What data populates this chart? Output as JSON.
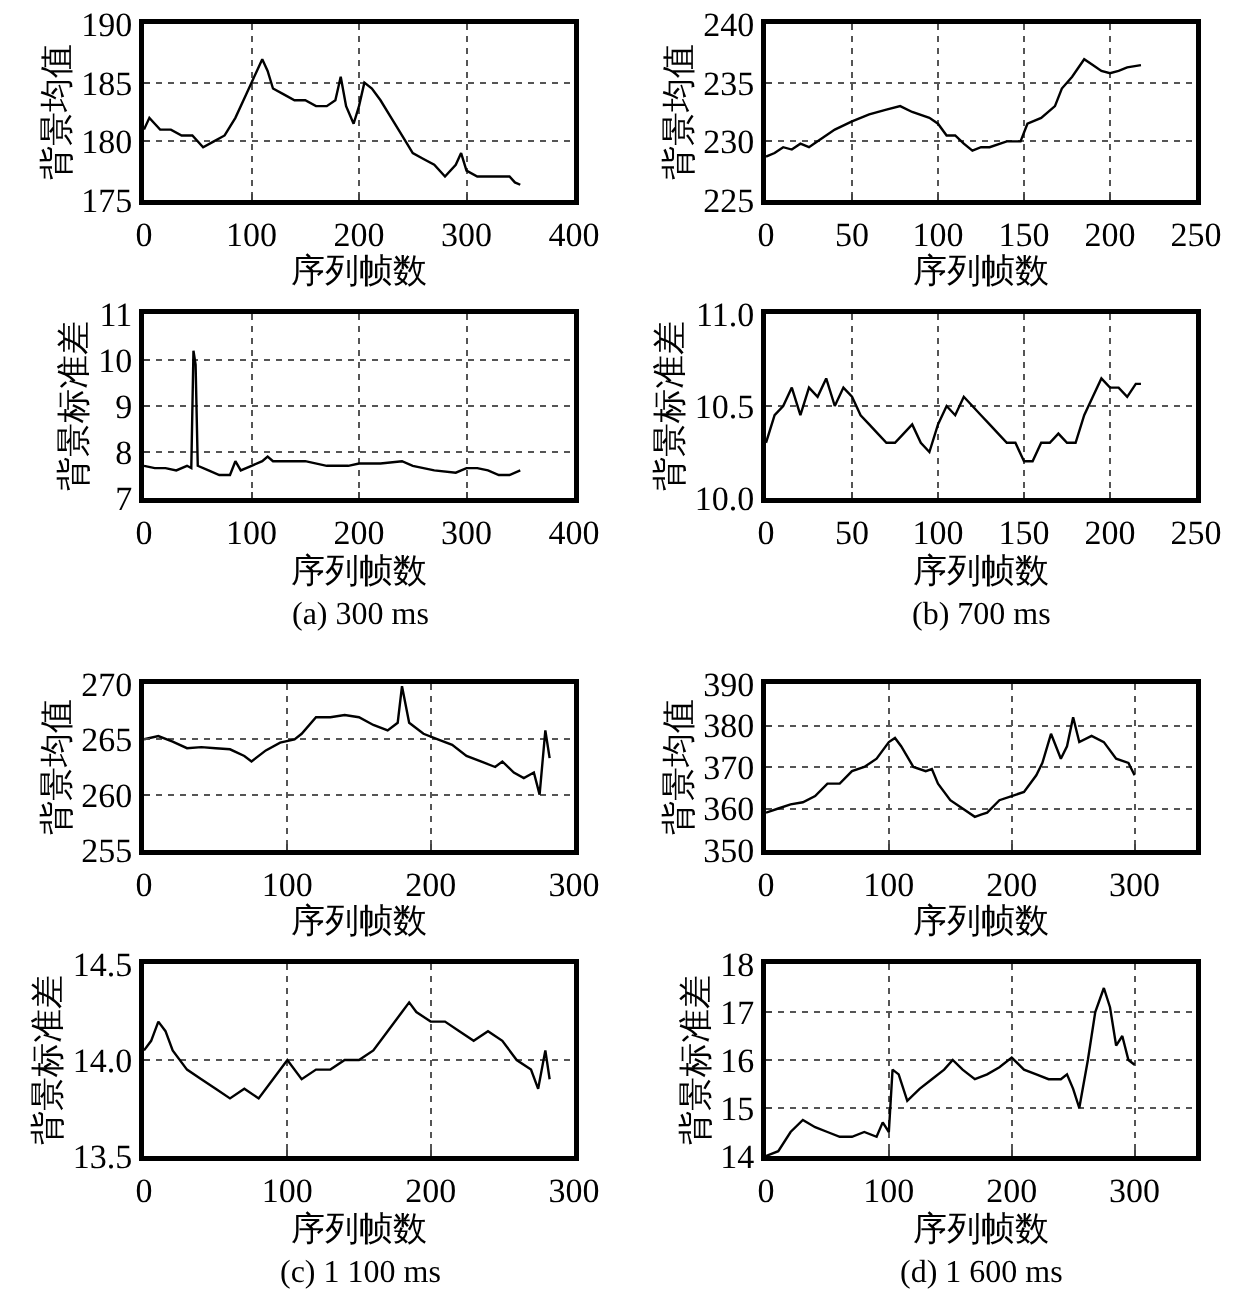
{
  "chart_data": [
    {
      "type": "line",
      "xlabel": "序列帧数",
      "ylabel": "背景均值",
      "xlim": [
        0,
        400
      ],
      "ylim": [
        175,
        190
      ],
      "xticks": [
        0,
        100,
        200,
        300,
        400
      ],
      "yticks": [
        175,
        180,
        185,
        190
      ],
      "grid": true,
      "x": [
        0,
        5,
        10,
        15,
        25,
        35,
        45,
        55,
        65,
        75,
        85,
        95,
        105,
        110,
        115,
        120,
        130,
        140,
        150,
        160,
        170,
        178,
        183,
        188,
        195,
        200,
        205,
        212,
        220,
        230,
        240,
        250,
        260,
        270,
        280,
        290,
        295,
        300,
        310,
        320,
        330,
        340,
        345,
        350
      ],
      "series": [
        {
          "color": "#000000",
          "values": [
            181,
            182,
            181.5,
            181,
            181,
            180.5,
            180.5,
            179.5,
            180,
            180.5,
            182,
            184,
            186,
            187,
            186,
            184.5,
            184,
            183.5,
            183.5,
            183,
            183,
            183.5,
            185.5,
            183,
            181.5,
            183,
            185,
            184.5,
            183.5,
            182,
            180.5,
            179,
            178.5,
            178,
            177,
            178,
            179,
            177.5,
            177,
            177,
            177,
            177,
            176.5,
            176.3
          ]
        }
      ]
    },
    {
      "type": "line",
      "xlabel": "序列帧数",
      "ylabel": "背景均值",
      "xlim": [
        0,
        250
      ],
      "ylim": [
        225,
        240
      ],
      "xticks": [
        0,
        50,
        100,
        150,
        200,
        250
      ],
      "yticks": [
        225,
        230,
        235,
        240
      ],
      "grid": true,
      "x": [
        0,
        5,
        10,
        15,
        20,
        25,
        30,
        40,
        50,
        60,
        70,
        78,
        85,
        95,
        100,
        105,
        110,
        115,
        120,
        125,
        130,
        140,
        148,
        152,
        160,
        168,
        172,
        178,
        185,
        190,
        195,
        200,
        205,
        210,
        218
      ],
      "series": [
        {
          "color": "#000000",
          "values": [
            228.7,
            229,
            229.5,
            229.3,
            229.8,
            229.5,
            230,
            231,
            231.7,
            232.3,
            232.7,
            233,
            232.5,
            232,
            231.5,
            230.5,
            230.5,
            229.8,
            229.2,
            229.5,
            229.5,
            230,
            230,
            231.5,
            232,
            233,
            234.5,
            235.5,
            237,
            236.5,
            236,
            235.8,
            236,
            236.3,
            236.5
          ]
        }
      ]
    },
    {
      "type": "line",
      "xlabel": "序列帧数",
      "ylabel": "背景标准差",
      "xlim": [
        0,
        400
      ],
      "ylim": [
        7,
        11
      ],
      "xticks": [
        0,
        100,
        200,
        300,
        400
      ],
      "yticks": [
        7,
        8,
        9,
        10,
        11
      ],
      "grid": true,
      "annotations": [
        "(a) 300 ms"
      ],
      "x": [
        0,
        10,
        20,
        30,
        40,
        44,
        46,
        48,
        50,
        60,
        70,
        80,
        85,
        90,
        100,
        110,
        115,
        120,
        130,
        150,
        170,
        190,
        200,
        220,
        240,
        250,
        270,
        290,
        300,
        310,
        320,
        330,
        340,
        350
      ],
      "series": [
        {
          "color": "#000000",
          "values": [
            7.7,
            7.65,
            7.65,
            7.6,
            7.7,
            7.65,
            10.2,
            9.9,
            7.7,
            7.6,
            7.5,
            7.5,
            7.8,
            7.6,
            7.7,
            7.8,
            7.9,
            7.8,
            7.8,
            7.8,
            7.7,
            7.7,
            7.75,
            7.75,
            7.8,
            7.7,
            7.6,
            7.55,
            7.65,
            7.65,
            7.6,
            7.5,
            7.5,
            7.6
          ]
        }
      ]
    },
    {
      "type": "line",
      "xlabel": "序列帧数",
      "ylabel": "背景标准差",
      "xlim": [
        0,
        250
      ],
      "ylim": [
        10,
        11
      ],
      "xticks": [
        0,
        50,
        100,
        150,
        200,
        250
      ],
      "yticks": [
        {
          "value": 10,
          "label": "10.0"
        },
        10.5,
        {
          "value": 11,
          "label": "11.0"
        }
      ],
      "grid": true,
      "annotations": [
        "(b) 700 ms"
      ],
      "x": [
        0,
        5,
        10,
        15,
        20,
        25,
        30,
        35,
        40,
        45,
        50,
        55,
        60,
        65,
        70,
        75,
        80,
        85,
        90,
        95,
        100,
        105,
        110,
        115,
        120,
        125,
        130,
        135,
        140,
        145,
        150,
        155,
        160,
        165,
        170,
        175,
        180,
        185,
        190,
        195,
        200,
        205,
        210,
        215,
        218
      ],
      "series": [
        {
          "color": "#000000",
          "values": [
            10.3,
            10.45,
            10.5,
            10.6,
            10.45,
            10.6,
            10.55,
            10.65,
            10.5,
            10.6,
            10.55,
            10.45,
            10.4,
            10.35,
            10.3,
            10.3,
            10.35,
            10.4,
            10.3,
            10.25,
            10.4,
            10.5,
            10.45,
            10.55,
            10.5,
            10.45,
            10.4,
            10.35,
            10.3,
            10.3,
            10.2,
            10.2,
            10.3,
            10.3,
            10.35,
            10.3,
            10.3,
            10.45,
            10.55,
            10.65,
            10.6,
            10.6,
            10.55,
            10.62,
            10.62
          ]
        }
      ]
    },
    {
      "type": "line",
      "xlabel": "序列帧数",
      "ylabel": "背景均值",
      "xlim": [
        0,
        300
      ],
      "ylim": [
        255,
        270
      ],
      "xticks": [
        0,
        100,
        200,
        300
      ],
      "yticks": [
        255,
        260,
        265,
        270
      ],
      "grid": true,
      "x": [
        0,
        10,
        20,
        30,
        40,
        50,
        60,
        70,
        75,
        85,
        95,
        105,
        110,
        120,
        130,
        140,
        150,
        160,
        170,
        177,
        180,
        185,
        195,
        205,
        215,
        225,
        235,
        245,
        250,
        258,
        265,
        272,
        276,
        280,
        283
      ],
      "series": [
        {
          "color": "#000000",
          "values": [
            265,
            265.3,
            264.8,
            264.2,
            264.3,
            264.2,
            264.1,
            263.5,
            263,
            264,
            264.7,
            265,
            265.5,
            267,
            267,
            267.2,
            267,
            266.3,
            265.8,
            266.5,
            269.8,
            266.5,
            265.5,
            265,
            264.5,
            263.5,
            263,
            262.5,
            263,
            262,
            261.5,
            262,
            260,
            265.8,
            263.3
          ]
        }
      ]
    },
    {
      "type": "line",
      "xlabel": "序列帧数",
      "ylabel": "背景均值",
      "xlim": [
        0,
        350
      ],
      "ylim": [
        350,
        390
      ],
      "xticks": [
        0,
        100,
        200,
        300
      ],
      "yticks": [
        350,
        360,
        370,
        380,
        390
      ],
      "grid": true,
      "x": [
        0,
        10,
        20,
        30,
        40,
        50,
        55,
        60,
        70,
        80,
        90,
        100,
        105,
        110,
        120,
        130,
        135,
        140,
        150,
        160,
        170,
        175,
        180,
        190,
        200,
        210,
        220,
        225,
        232,
        240,
        245,
        250,
        255,
        265,
        275,
        285,
        295,
        300
      ],
      "series": [
        {
          "color": "#000000",
          "values": [
            359,
            360,
            361,
            361.5,
            363,
            366,
            366,
            366,
            369,
            370,
            372,
            376,
            377,
            375,
            370,
            369,
            369.5,
            366,
            362,
            360,
            358,
            358.5,
            359,
            362,
            363,
            364,
            368,
            371,
            378,
            372,
            375,
            382,
            376,
            377.5,
            376,
            372,
            371,
            368
          ]
        }
      ]
    },
    {
      "type": "line",
      "xlabel": "序列帧数",
      "ylabel": "背景标准差",
      "xlim": [
        0,
        300
      ],
      "ylim": [
        13.5,
        14.5
      ],
      "xticks": [
        0,
        100,
        200,
        300
      ],
      "yticks": [
        13.5,
        {
          "value": 14,
          "label": "14.0"
        },
        14.5
      ],
      "grid": true,
      "annotations": [
        "(c) 1 100 ms"
      ],
      "x": [
        0,
        5,
        10,
        15,
        20,
        30,
        40,
        50,
        60,
        70,
        80,
        90,
        100,
        110,
        120,
        130,
        140,
        150,
        160,
        170,
        180,
        185,
        190,
        200,
        210,
        220,
        230,
        240,
        250,
        260,
        270,
        275,
        280,
        283
      ],
      "series": [
        {
          "color": "#000000",
          "values": [
            14.05,
            14.1,
            14.2,
            14.15,
            14.05,
            13.95,
            13.9,
            13.85,
            13.8,
            13.85,
            13.8,
            13.9,
            14,
            13.9,
            13.95,
            13.95,
            14,
            14,
            14.05,
            14.15,
            14.25,
            14.3,
            14.25,
            14.2,
            14.2,
            14.15,
            14.1,
            14.15,
            14.1,
            14,
            13.95,
            13.85,
            14.05,
            13.9
          ]
        }
      ]
    },
    {
      "type": "line",
      "xlabel": "序列帧数",
      "ylabel": "背景标准差",
      "xlim": [
        0,
        350
      ],
      "ylim": [
        14,
        18
      ],
      "xticks": [
        0,
        100,
        200,
        300
      ],
      "yticks": [
        14,
        15,
        16,
        17,
        18
      ],
      "grid": true,
      "annotations": [
        "(d) 1 600 ms"
      ],
      "x": [
        0,
        10,
        20,
        30,
        40,
        50,
        60,
        70,
        80,
        90,
        95,
        100,
        103,
        108,
        115,
        125,
        135,
        145,
        152,
        160,
        170,
        180,
        190,
        200,
        210,
        220,
        230,
        240,
        245,
        250,
        255,
        262,
        268,
        275,
        280,
        285,
        290,
        295,
        300
      ],
      "series": [
        {
          "color": "#000000",
          "values": [
            14,
            14.1,
            14.5,
            14.75,
            14.6,
            14.5,
            14.4,
            14.4,
            14.5,
            14.4,
            14.7,
            14.5,
            15.8,
            15.7,
            15.15,
            15.4,
            15.6,
            15.8,
            16,
            15.8,
            15.6,
            15.7,
            15.85,
            16.05,
            15.8,
            15.7,
            15.6,
            15.6,
            15.7,
            15.4,
            15,
            16,
            17,
            17.5,
            17.1,
            16.3,
            16.5,
            16,
            15.9
          ]
        }
      ]
    }
  ]
}
